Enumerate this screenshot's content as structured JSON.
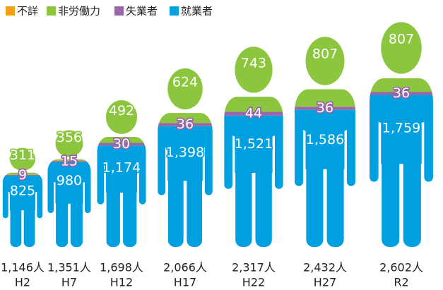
{
  "chart_data": {
    "type": "pictogram",
    "categories": [
      "H2",
      "H7",
      "H12",
      "H17",
      "H22",
      "H27",
      "R2"
    ],
    "totals": {
      "values": [
        1146,
        1351,
        1698,
        2066,
        2317,
        2432,
        2602
      ],
      "value_labels": [
        "1,146人",
        "1,351人",
        "1,698人",
        "2,066人",
        "2,317人",
        "2,432人",
        "2,602人"
      ]
    },
    "series": [
      {
        "name": "不詳",
        "color": "#f5a00f",
        "values": [
          1,
          0,
          2,
          8,
          9,
          3,
          null
        ]
      },
      {
        "name": "非労働力",
        "color": "#8cc63f",
        "values": [
          311,
          356,
          492,
          624,
          743,
          807,
          807
        ]
      },
      {
        "name": "失業者",
        "color": "#9966aa",
        "values": [
          9,
          15,
          30,
          36,
          44,
          36,
          36
        ]
      },
      {
        "name": "就業者",
        "color": "#00a0e0",
        "values": [
          825,
          980,
          1174,
          1398,
          1521,
          1586,
          1759
        ],
        "value_labels": [
          "825",
          "980",
          "1,174",
          "1,398",
          "1,521",
          "1,586",
          "1,759"
        ]
      }
    ]
  }
}
